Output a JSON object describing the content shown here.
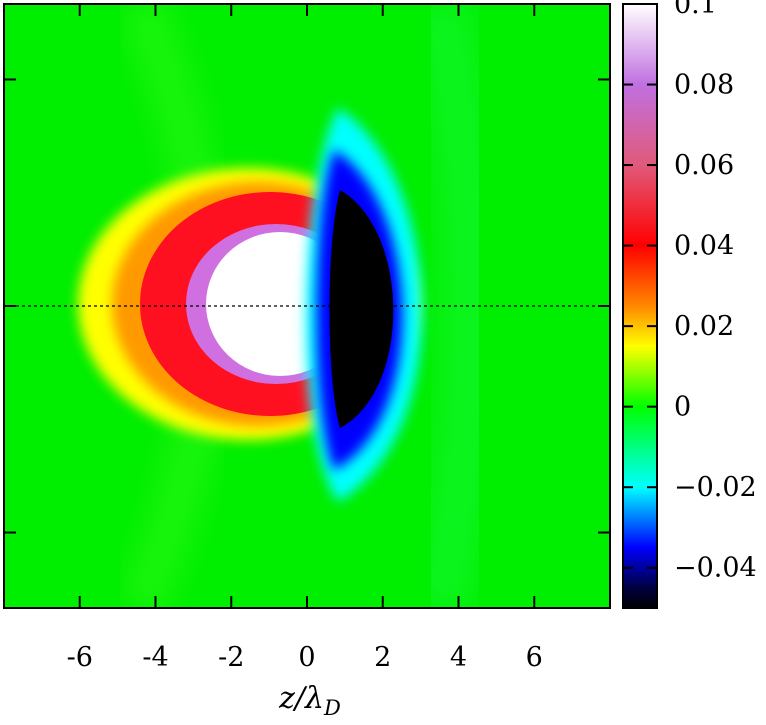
{
  "chart_data": {
    "type": "heatmap",
    "title": "",
    "xlabel_main": "z/λ",
    "xlabel_sub": "D",
    "ylabel": "",
    "xlim": [
      -8,
      8
    ],
    "ylim": [
      -8,
      8
    ],
    "x_ticks": [
      -6,
      -4,
      -2,
      0,
      2,
      4,
      6
    ],
    "x_tick_labels": [
      "-6",
      "-4",
      "-2",
      "0",
      "2",
      "4",
      "6"
    ],
    "y_ticks": [
      -6,
      0,
      6
    ],
    "colorbar": {
      "range": [
        -0.05,
        0.1
      ],
      "ticks": [
        0.1,
        0.08,
        0.06,
        0.04,
        0.02,
        0,
        -0.02,
        -0.04
      ],
      "tick_labels": [
        "0.1",
        "0.08",
        "0.06",
        "0.04",
        "0.02",
        "0",
        "−0.02",
        "−0.04"
      ],
      "stops": [
        {
          "value": -0.05,
          "color": "#000000"
        },
        {
          "value": -0.045,
          "color": "#000040"
        },
        {
          "value": -0.035,
          "color": "#0000ff"
        },
        {
          "value": -0.02,
          "color": "#00ffff"
        },
        {
          "value": 0,
          "color": "#00ff00"
        },
        {
          "value": 0.015,
          "color": "#ffff00"
        },
        {
          "value": 0.025,
          "color": "#ff8800"
        },
        {
          "value": 0.04,
          "color": "#ff0000"
        },
        {
          "value": 0.06,
          "color": "#e05a7a"
        },
        {
          "value": 0.08,
          "color": "#c070e0"
        },
        {
          "value": 0.1,
          "color": "#ffffff"
        }
      ]
    },
    "grid": false,
    "reference_line": {
      "y": 0,
      "style": "dotted"
    },
    "features": [
      {
        "name": "positive-wake-crescent",
        "center_x": -1.5,
        "peak_value": 0.1,
        "side": "upstream"
      },
      {
        "name": "negative-wake-crescent",
        "center_x": 1.5,
        "min_value": -0.05,
        "side": "downstream"
      }
    ]
  }
}
